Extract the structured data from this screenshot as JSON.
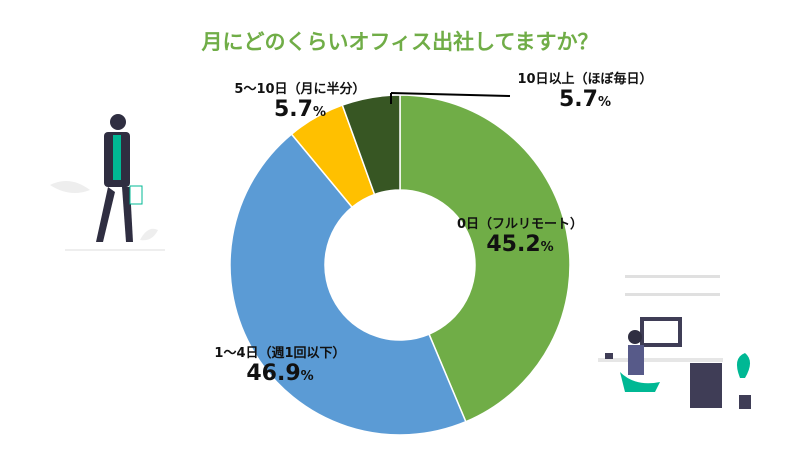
{
  "chart_data": {
    "type": "pie",
    "donut": true,
    "title": "月にどのくらいオフィス出社してますか？",
    "categories": [
      "0日（フルリモート）",
      "1〜4日（週1回以下）",
      "5〜10日（月に半分）",
      "10日以上（ほぼ毎日）"
    ],
    "values": [
      45.2,
      46.9,
      5.7,
      5.7
    ],
    "unit": "%",
    "colors": [
      "#70ad47",
      "#5b9bd5",
      "#ffc000",
      "#375623"
    ],
    "title_color": "#70ad47"
  }
}
